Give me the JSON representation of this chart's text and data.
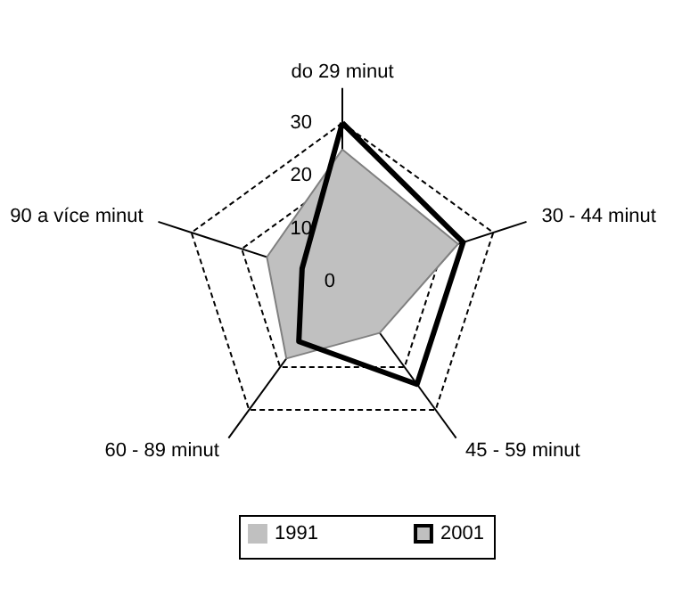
{
  "chart_data": {
    "type": "radar",
    "categories": [
      "do 29 minut",
      "30 - 44 minut",
      "45 - 59 minut",
      "60 - 89 minut",
      "90 a více minut"
    ],
    "series": [
      {
        "name": "1991",
        "color": "#c0c0c0",
        "values": [
          25,
          23,
          12,
          18,
          15
        ]
      },
      {
        "name": "2001",
        "color": "#000000",
        "values": [
          30,
          24,
          24,
          14,
          8
        ]
      }
    ],
    "ylim": [
      0,
      30
    ],
    "yticks": [
      0,
      10,
      20,
      30
    ],
    "grid": true,
    "legend": "bottom"
  }
}
